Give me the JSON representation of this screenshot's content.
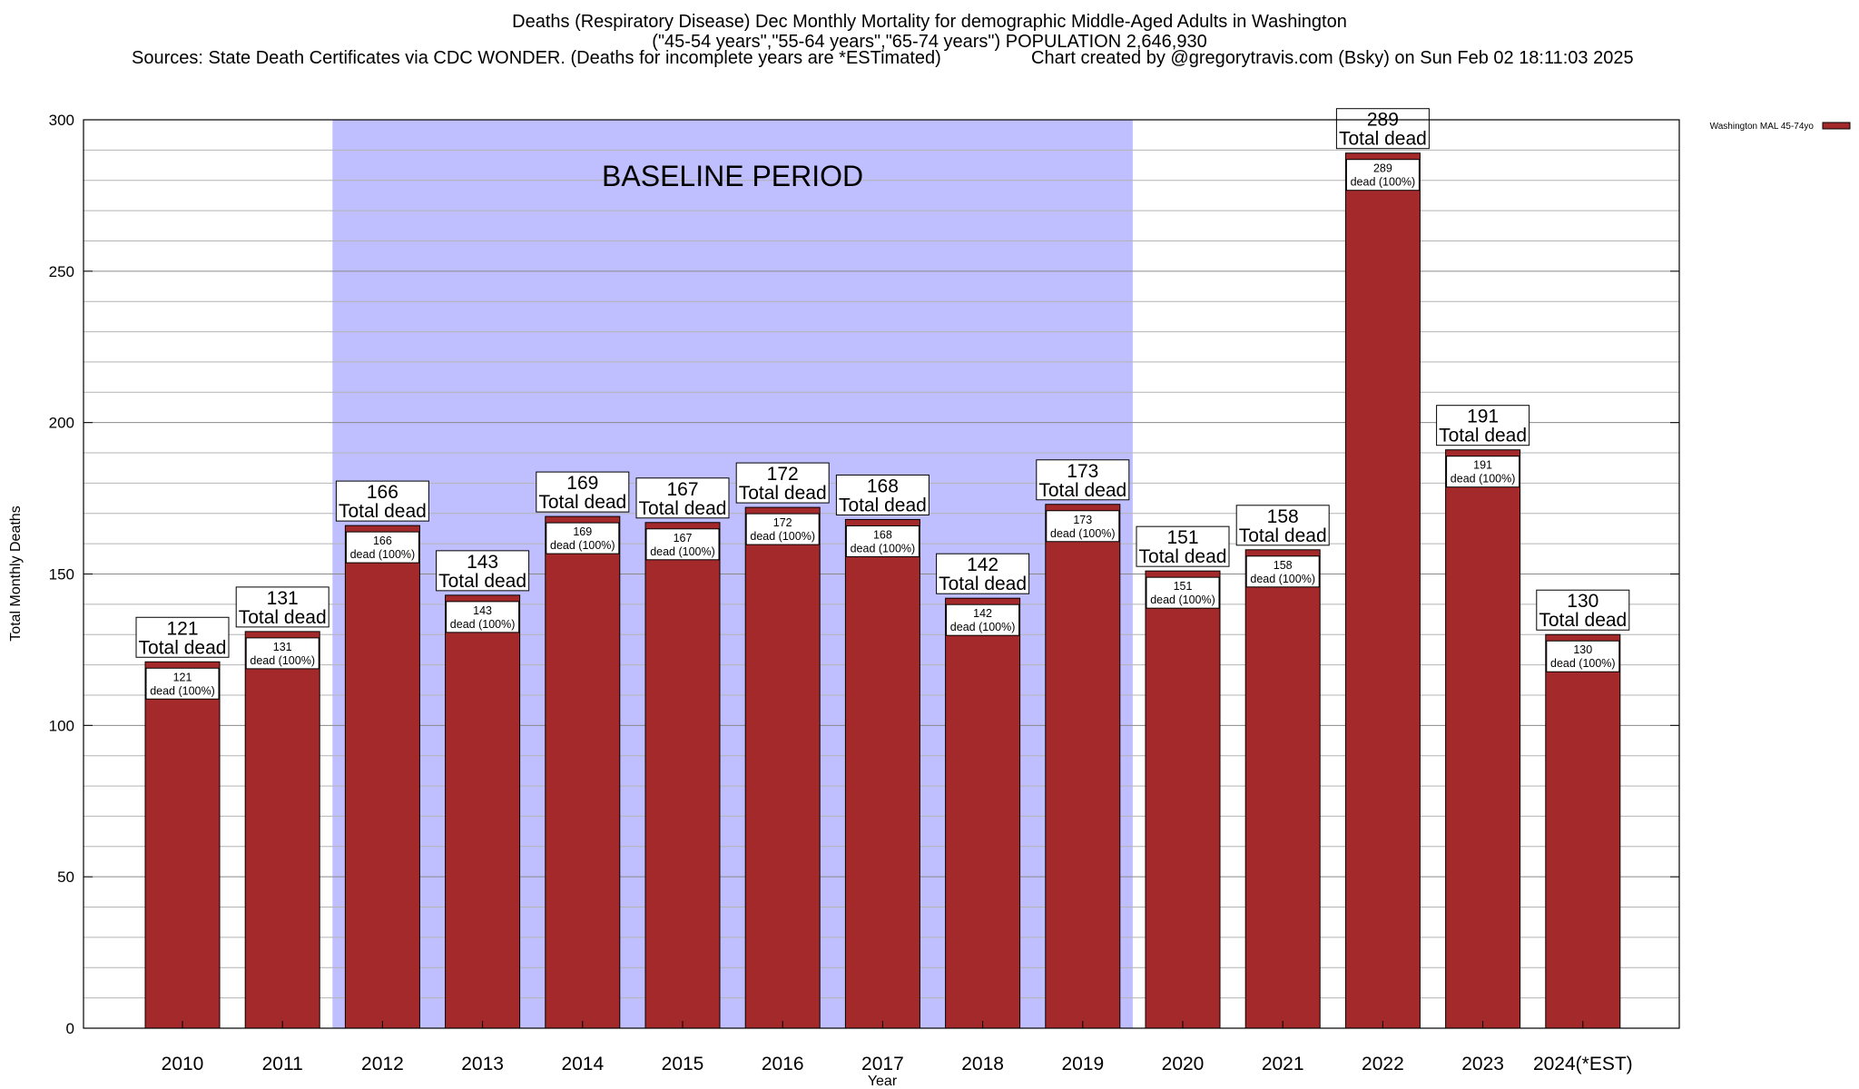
{
  "header": {
    "title_line1": "Deaths (Respiratory Disease) Dec Monthly Mortality for demographic Middle-Aged Adults in Washington",
    "title_line2": "(\"45-54 years\",\"55-64 years\",\"65-74 years\") POPULATION 2,646,930",
    "sources": "Sources: State Death Certificates via CDC WONDER. (Deaths for incomplete years are *ESTimated)",
    "credit": "Chart created by @gregorytravis.com (Bsky) on Sun Feb 02 18:11:03 2025"
  },
  "chart_data": {
    "type": "bar",
    "title": "Deaths (Respiratory Disease) Dec Monthly Mortality for demographic Middle-Aged Adults in Washington",
    "xlabel": "Year",
    "ylabel": "Total Monthly Deaths",
    "ylim": [
      0,
      300
    ],
    "yticks": [
      0,
      50,
      100,
      150,
      200,
      250,
      300
    ],
    "minor_grid_step": 10,
    "categories": [
      "2010",
      "2011",
      "2012",
      "2013",
      "2014",
      "2015",
      "2016",
      "2017",
      "2018",
      "2019",
      "2020",
      "2021",
      "2022",
      "2023",
      "2024(*EST)"
    ],
    "values": [
      121,
      131,
      166,
      143,
      169,
      167,
      172,
      168,
      142,
      173,
      151,
      158,
      289,
      191,
      130
    ],
    "series": [
      {
        "name": "Washington MAL 45-74yo",
        "color": "#a4292b",
        "values": [
          121,
          131,
          166,
          143,
          169,
          167,
          172,
          168,
          142,
          173,
          151,
          158,
          289,
          191,
          130
        ]
      }
    ],
    "callout_label": "Total dead",
    "inner_label": "dead (100%)",
    "baseline": {
      "label": "BASELINE PERIOD",
      "start": "2012",
      "end": "2019",
      "color": "#bfbfff"
    },
    "legend_position": "top-right"
  }
}
